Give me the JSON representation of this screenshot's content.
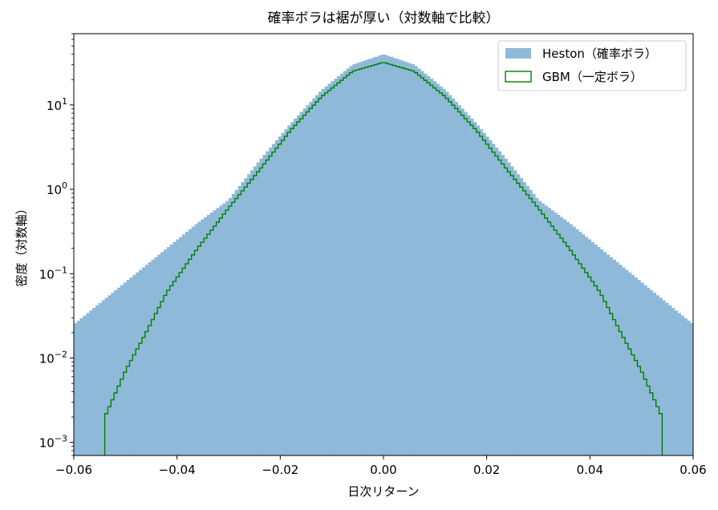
{
  "chart_data": {
    "type": "histogram",
    "title": "確率ボラは裾が厚い（対数軸で比較）",
    "xlabel": "日次リターン",
    "ylabel": "密度（対数軸）",
    "xlim": [
      -0.06,
      0.06
    ],
    "ylim": [
      0.0007,
      70
    ],
    "yscale": "log",
    "grid": false,
    "legend_position": "top-right",
    "x_ticks": [
      {
        "value": -0.06,
        "label": "−0.06"
      },
      {
        "value": -0.04,
        "label": "−0.04"
      },
      {
        "value": -0.02,
        "label": "−0.02"
      },
      {
        "value": 0.0,
        "label": "0.00"
      },
      {
        "value": 0.02,
        "label": "0.02"
      },
      {
        "value": 0.04,
        "label": "0.04"
      },
      {
        "value": 0.06,
        "label": "0.06"
      }
    ],
    "y_ticks": [
      {
        "value": 0.001,
        "base": "10",
        "exp": "−3"
      },
      {
        "value": 0.01,
        "base": "10",
        "exp": "−2"
      },
      {
        "value": 0.1,
        "base": "10",
        "exp": "−1"
      },
      {
        "value": 1,
        "base": "10",
        "exp": "0"
      },
      {
        "value": 10,
        "base": "10",
        "exp": "1"
      }
    ],
    "bin_width": 0.0006,
    "series": [
      {
        "name": "Heston（確率ボラ）",
        "style": "filled",
        "color": "#8fb9d8",
        "x": [
          -0.06,
          -0.054,
          -0.048,
          -0.042,
          -0.036,
          -0.03,
          -0.024,
          -0.018,
          -0.012,
          -0.006,
          0.0,
          0.006,
          0.012,
          0.018,
          0.024,
          0.03,
          0.036,
          0.042,
          0.048,
          0.054,
          0.06
        ],
        "density": [
          0.025,
          0.05,
          0.1,
          0.2,
          0.4,
          0.75,
          2.2,
          6.0,
          15.0,
          30.0,
          40.0,
          30.0,
          15.0,
          6.0,
          2.2,
          0.75,
          0.4,
          0.2,
          0.1,
          0.05,
          0.025
        ]
      },
      {
        "name": "GBM（一定ボラ）",
        "style": "step",
        "color": "#008000",
        "x": [
          -0.054,
          -0.05,
          -0.046,
          -0.042,
          -0.036,
          -0.03,
          -0.024,
          -0.018,
          -0.012,
          -0.006,
          0.0,
          0.006,
          0.012,
          0.018,
          0.024,
          0.03,
          0.036,
          0.042,
          0.046,
          0.05,
          0.054
        ],
        "density": [
          0.002,
          0.007,
          0.02,
          0.06,
          0.2,
          0.6,
          1.7,
          5.0,
          12.5,
          25.0,
          32.0,
          25.0,
          12.5,
          5.0,
          1.7,
          0.6,
          0.2,
          0.06,
          0.02,
          0.007,
          0.002
        ]
      }
    ]
  }
}
